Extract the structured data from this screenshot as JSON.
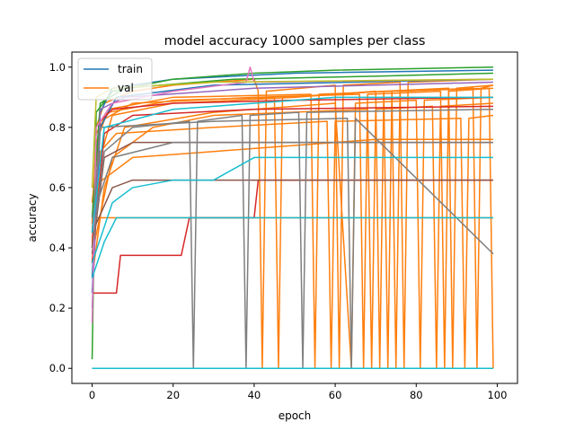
{
  "chart_data": {
    "type": "line",
    "title": "model accuracy 1000 samples per class",
    "xlabel": "epoch",
    "ylabel": "accuracy",
    "xlim": [
      -5,
      105
    ],
    "ylim": [
      -0.05,
      1.05
    ],
    "xticks": [
      0,
      20,
      40,
      60,
      80,
      100
    ],
    "yticks": [
      0.0,
      0.2,
      0.4,
      0.6,
      0.8,
      1.0
    ],
    "xtick_labels": [
      "0",
      "20",
      "40",
      "60",
      "80",
      "100"
    ],
    "ytick_labels": [
      "0.0",
      "0.2",
      "0.4",
      "0.6",
      "0.8",
      "1.0"
    ],
    "grid": false,
    "legend_position": "upper-left",
    "legend": [
      {
        "name": "train",
        "color": "#1f77b4"
      },
      {
        "name": "val",
        "color": "#ff7f0e"
      }
    ],
    "series": [
      {
        "color": "#ff7f0e",
        "points": [
          [
            0,
            0.4
          ],
          [
            1,
            0.8
          ],
          [
            3,
            0.88
          ],
          [
            10,
            0.92
          ],
          [
            20,
            0.94
          ],
          [
            40,
            0.96
          ],
          [
            41,
            0.92
          ],
          [
            42,
            0.0
          ],
          [
            43,
            0.92
          ],
          [
            60,
            0.94
          ],
          [
            61,
            0.0
          ],
          [
            62,
            0.94
          ],
          [
            76,
            0.95
          ],
          [
            77,
            0.0
          ],
          [
            78,
            0.95
          ],
          [
            99,
            0.96
          ]
        ]
      },
      {
        "color": "#ff7f0e",
        "points": [
          [
            0,
            0.35
          ],
          [
            2,
            0.7
          ],
          [
            5,
            0.84
          ],
          [
            20,
            0.88
          ],
          [
            50,
            0.9
          ],
          [
            70,
            0.92
          ],
          [
            71,
            0.0
          ],
          [
            72,
            0.92
          ],
          [
            88,
            0.93
          ],
          [
            89,
            0.0
          ],
          [
            90,
            0.93
          ],
          [
            99,
            0.94
          ]
        ]
      },
      {
        "color": "#ff7f0e",
        "points": [
          [
            0,
            0.3
          ],
          [
            3,
            0.6
          ],
          [
            8,
            0.8
          ],
          [
            30,
            0.85
          ],
          [
            60,
            0.88
          ],
          [
            64,
            0.0
          ],
          [
            65,
            0.88
          ],
          [
            80,
            0.89
          ],
          [
            81,
            0.0
          ],
          [
            82,
            0.89
          ],
          [
            99,
            0.9
          ]
        ]
      },
      {
        "color": "#ff7f0e",
        "points": [
          [
            0,
            0.45
          ],
          [
            1,
            0.75
          ],
          [
            4,
            0.86
          ],
          [
            20,
            0.9
          ],
          [
            54,
            0.91
          ],
          [
            55,
            0.0
          ],
          [
            56,
            0.91
          ],
          [
            74,
            0.92
          ],
          [
            75,
            0.0
          ],
          [
            76,
            0.92
          ],
          [
            94,
            0.93
          ],
          [
            95,
            0.0
          ],
          [
            96,
            0.93
          ],
          [
            99,
            0.94
          ]
        ]
      },
      {
        "color": "#ff7f0e",
        "points": [
          [
            0,
            0.38
          ],
          [
            5,
            0.7
          ],
          [
            15,
            0.8
          ],
          [
            30,
            0.84
          ],
          [
            68,
            0.86
          ],
          [
            69,
            0.0
          ],
          [
            70,
            0.86
          ],
          [
            84,
            0.87
          ],
          [
            85,
            0.0
          ],
          [
            86,
            0.87
          ],
          [
            99,
            0.88
          ]
        ]
      },
      {
        "color": "#ff7f0e",
        "points": [
          [
            0,
            0.5
          ],
          [
            30,
            0.5
          ],
          [
            99,
            0.5
          ]
        ]
      },
      {
        "color": "#ff7f0e",
        "points": [
          [
            0,
            0.42
          ],
          [
            2,
            0.72
          ],
          [
            6,
            0.78
          ],
          [
            30,
            0.8
          ],
          [
            58,
            0.82
          ],
          [
            59,
            0.0
          ],
          [
            60,
            0.82
          ],
          [
            91,
            0.83
          ],
          [
            92,
            0.0
          ],
          [
            93,
            0.83
          ],
          [
            99,
            0.84
          ]
        ]
      },
      {
        "color": "#ff7f0e",
        "points": [
          [
            0,
            0.55
          ],
          [
            2,
            0.82
          ],
          [
            10,
            0.88
          ],
          [
            40,
            0.9
          ],
          [
            66,
            0.91
          ],
          [
            67,
            0.0
          ],
          [
            68,
            0.91
          ],
          [
            86,
            0.92
          ],
          [
            87,
            0.0
          ],
          [
            88,
            0.92
          ],
          [
            99,
            0.93
          ]
        ]
      },
      {
        "color": "#ff7f0e",
        "points": [
          [
            0,
            0.48
          ],
          [
            1,
            0.78
          ],
          [
            4,
            0.85
          ],
          [
            20,
            0.89
          ],
          [
            45,
            0.9
          ],
          [
            46,
            0.0
          ],
          [
            47,
            0.9
          ],
          [
            72,
            0.92
          ],
          [
            73,
            0.0
          ],
          [
            74,
            0.92
          ],
          [
            98,
            0.93
          ],
          [
            99,
            0.0
          ]
        ]
      },
      {
        "color": "#ff7f0e",
        "points": [
          [
            0,
            0.6
          ],
          [
            10,
            0.7
          ],
          [
            30,
            0.72
          ],
          [
            50,
            0.74
          ],
          [
            70,
            0.76
          ],
          [
            99,
            0.76
          ]
        ]
      },
      {
        "color": "#1f77b4",
        "points": [
          [
            0,
            0.3
          ],
          [
            2,
            0.85
          ],
          [
            5,
            0.93
          ],
          [
            20,
            0.96
          ],
          [
            50,
            0.98
          ],
          [
            99,
            0.99
          ]
        ]
      },
      {
        "color": "#1f77b4",
        "points": [
          [
            0,
            0.25
          ],
          [
            2,
            0.8
          ],
          [
            6,
            0.9
          ],
          [
            30,
            0.94
          ],
          [
            99,
            0.96
          ]
        ]
      },
      {
        "color": "#1f77b4",
        "points": [
          [
            0,
            0.0
          ],
          [
            99,
            0.0
          ]
        ]
      },
      {
        "color": "#2ca02c",
        "points": [
          [
            0,
            0.03
          ],
          [
            1,
            0.85
          ],
          [
            5,
            0.92
          ],
          [
            20,
            0.96
          ],
          [
            40,
            0.98
          ],
          [
            60,
            0.99
          ],
          [
            99,
            1.0
          ]
        ]
      },
      {
        "color": "#2ca02c",
        "points": [
          [
            0,
            0.5
          ],
          [
            2,
            0.88
          ],
          [
            8,
            0.93
          ],
          [
            35,
            0.96
          ],
          [
            70,
            0.97
          ],
          [
            99,
            0.98
          ]
        ]
      },
      {
        "color": "#d62728",
        "points": [
          [
            0,
            0.25
          ],
          [
            6,
            0.25
          ],
          [
            7,
            0.375
          ],
          [
            22,
            0.375
          ],
          [
            24,
            0.5
          ],
          [
            40,
            0.5
          ],
          [
            41,
            0.625
          ],
          [
            99,
            0.625
          ]
        ]
      },
      {
        "color": "#d62728",
        "points": [
          [
            0,
            0.4
          ],
          [
            2,
            0.82
          ],
          [
            5,
            0.86
          ],
          [
            20,
            0.88
          ],
          [
            50,
            0.89
          ],
          [
            99,
            0.9
          ]
        ]
      },
      {
        "color": "#d62728",
        "points": [
          [
            0,
            0.35
          ],
          [
            3,
            0.78
          ],
          [
            10,
            0.84
          ],
          [
            40,
            0.86
          ],
          [
            99,
            0.87
          ]
        ]
      },
      {
        "color": "#9467bd",
        "points": [
          [
            0,
            0.2
          ],
          [
            2,
            0.86
          ],
          [
            8,
            0.9
          ],
          [
            40,
            0.93
          ],
          [
            99,
            0.95
          ]
        ]
      },
      {
        "color": "#8c564b",
        "points": [
          [
            0,
            0.45
          ],
          [
            5,
            0.6
          ],
          [
            10,
            0.625
          ],
          [
            99,
            0.625
          ]
        ]
      },
      {
        "color": "#8c564b",
        "points": [
          [
            0,
            0.38
          ],
          [
            3,
            0.7
          ],
          [
            10,
            0.75
          ],
          [
            99,
            0.75
          ]
        ]
      },
      {
        "color": "#e377c2",
        "points": [
          [
            0,
            0.15
          ],
          [
            1,
            0.8
          ],
          [
            5,
            0.88
          ],
          [
            20,
            0.92
          ],
          [
            38,
            0.95
          ],
          [
            39,
            1.0
          ],
          [
            40,
            0.95
          ],
          [
            99,
            0.96
          ]
        ]
      },
      {
        "color": "#7f7f7f",
        "points": [
          [
            0,
            0.4
          ],
          [
            3,
            0.72
          ],
          [
            10,
            0.8
          ],
          [
            24,
            0.82
          ],
          [
            25,
            0.0
          ],
          [
            26,
            0.82
          ],
          [
            37,
            0.84
          ],
          [
            38,
            0.0
          ],
          [
            39,
            0.84
          ],
          [
            51,
            0.85
          ],
          [
            52,
            0.0
          ],
          [
            53,
            0.85
          ],
          [
            99,
            0.86
          ]
        ]
      },
      {
        "color": "#7f7f7f",
        "points": [
          [
            0,
            0.5
          ],
          [
            5,
            0.7
          ],
          [
            20,
            0.75
          ],
          [
            99,
            0.75
          ]
        ]
      },
      {
        "color": "#7f7f7f",
        "points": [
          [
            0,
            0.45
          ],
          [
            2,
            0.8
          ],
          [
            30,
            0.82
          ],
          [
            63,
            0.83
          ],
          [
            64,
            0.0
          ],
          [
            65,
            0.83
          ],
          [
            99,
            0.38
          ]
        ]
      },
      {
        "color": "#bcbd22",
        "points": [
          [
            0,
            0.6
          ],
          [
            1,
            0.9
          ],
          [
            5,
            0.93
          ],
          [
            30,
            0.95
          ],
          [
            99,
            0.96
          ]
        ]
      },
      {
        "color": "#17becf",
        "points": [
          [
            0,
            0.3
          ],
          [
            3,
            0.42
          ],
          [
            6,
            0.5
          ],
          [
            20,
            0.5
          ],
          [
            40,
            0.5
          ],
          [
            99,
            0.5
          ]
        ]
      },
      {
        "color": "#17becf",
        "points": [
          [
            0,
            0.35
          ],
          [
            5,
            0.55
          ],
          [
            10,
            0.6
          ],
          [
            20,
            0.625
          ],
          [
            30,
            0.625
          ],
          [
            40,
            0.7
          ],
          [
            99,
            0.7
          ]
        ]
      },
      {
        "color": "#17becf",
        "points": [
          [
            0,
            0.45
          ],
          [
            3,
            0.8
          ],
          [
            20,
            0.86
          ],
          [
            40,
            0.88
          ],
          [
            60,
            0.9
          ],
          [
            99,
            0.9
          ]
        ]
      },
      {
        "color": "#17becf",
        "points": [
          [
            0,
            0.0
          ],
          [
            99,
            0.0
          ]
        ]
      }
    ]
  }
}
